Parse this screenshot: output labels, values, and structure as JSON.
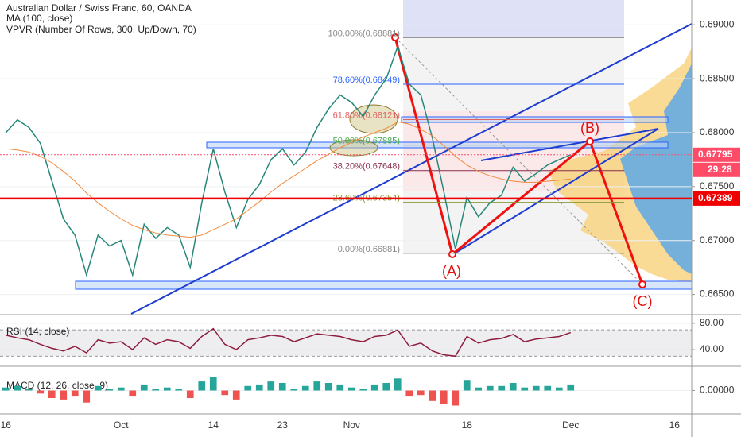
{
  "chart_data": [
    {
      "type": "line",
      "title": "Australian Dollar / Swiss Franc, 60, OANDA",
      "subtitle": "VPVR (Number Of Rows, 300, Up/Down, 70)",
      "categories": [
        "16",
        null,
        null,
        null,
        null,
        null,
        null,
        null,
        null,
        null,
        "Oct",
        null,
        null,
        null,
        null,
        null,
        null,
        null,
        "14",
        null,
        null,
        null,
        null,
        null,
        "23",
        null,
        null,
        null,
        null,
        null,
        "Nov",
        null,
        null,
        null,
        null,
        null,
        null,
        null,
        null,
        null,
        "18",
        null,
        null,
        null,
        null,
        null,
        null,
        null,
        null,
        "Dec",
        null,
        null,
        null,
        null,
        null,
        null,
        null,
        null,
        "16",
        null
      ],
      "color": "#26877a",
      "values": [
        0.68,
        0.6812,
        0.6805,
        0.679,
        0.6755,
        0.672,
        0.6705,
        0.6668,
        0.6705,
        0.6695,
        0.67,
        0.6668,
        0.6715,
        0.6702,
        0.6712,
        0.6705,
        0.6675,
        0.6735,
        0.6785,
        0.6745,
        0.6712,
        0.6738,
        0.6752,
        0.6775,
        0.6785,
        0.677,
        0.6782,
        0.6805,
        0.6822,
        0.6835,
        0.6828,
        0.6815,
        0.6835,
        0.685,
        0.688,
        0.6845,
        0.6835,
        0.6795,
        0.6745,
        0.6692,
        0.674,
        0.6722,
        0.6735,
        0.6742,
        0.6768,
        0.6755,
        0.6762,
        0.677,
        0.6775,
        0.67795,
        null,
        null,
        null,
        null,
        null,
        null,
        null,
        null,
        null,
        null
      ],
      "series": [
        {
          "name": "MA (100, close)",
          "color": "#f08a3c",
          "values": [
            0.6785,
            0.6784,
            0.6782,
            0.6778,
            0.6772,
            0.6764,
            0.6755,
            0.6744,
            0.6735,
            0.6727,
            0.672,
            0.6714,
            0.671,
            0.6707,
            0.6705,
            0.6704,
            0.6703,
            0.6705,
            0.671,
            0.6715,
            0.672,
            0.6728,
            0.6736,
            0.6745,
            0.6753,
            0.676,
            0.6767,
            0.6774,
            0.678,
            0.6786,
            0.6791,
            0.6796,
            0.68,
            0.6804,
            0.681,
            0.6808,
            0.6803,
            0.6797,
            0.6788,
            0.6778,
            0.677,
            0.6764,
            0.676,
            0.6757,
            0.6755,
            0.6754,
            0.6754,
            0.6755,
            0.6756,
            0.6757,
            null,
            null,
            null,
            null,
            null,
            null,
            null,
            null,
            null,
            null
          ]
        }
      ],
      "ylim": [
        0.6632,
        0.6923
      ],
      "yticks": [
        {
          "value": 0.665,
          "label": "0.66500"
        },
        {
          "value": 0.67,
          "label": "0.67000"
        },
        {
          "value": 0.675,
          "label": "0.67500"
        },
        {
          "value": 0.68,
          "label": "0.68000"
        },
        {
          "value": 0.685,
          "label": "0.68500"
        },
        {
          "value": 0.69,
          "label": "0.69000"
        }
      ],
      "fib_levels": [
        {
          "value": 0.68881,
          "label": "100.00%(0.68881)",
          "color": "#888888"
        },
        {
          "value": 0.68449,
          "label": "78.60%(0.68449)",
          "color": "#2962ff"
        },
        {
          "value": 0.68121,
          "label": "61.80%(0.68121)",
          "color": "#e06060"
        },
        {
          "value": 0.67885,
          "label": "50.00%(0.67885)",
          "color": "#4caf50"
        },
        {
          "value": 0.67648,
          "label": "38.20%(0.67648)",
          "color": "#8a2c4c"
        },
        {
          "value": 0.67354,
          "label": "23.60%(0.67354)",
          "color": "#8a9a3a"
        },
        {
          "value": 0.66881,
          "label": "0.00%(0.66881)",
          "color": "#888888"
        }
      ],
      "price_labels": [
        {
          "value": 0.67795,
          "label": "0.67795",
          "color": "#ff4a68"
        },
        {
          "value": 0.67389,
          "label": "0.67389",
          "color": "#f00000"
        }
      ],
      "countdown": "29:28",
      "wave_labels": [
        "(A)",
        "(B)",
        "(C)"
      ]
    },
    {
      "type": "line",
      "title": "RSI (14, close)",
      "color": "#8e1c3c",
      "values": [
        62,
        58,
        55,
        48,
        42,
        38,
        45,
        35,
        55,
        50,
        52,
        40,
        58,
        48,
        55,
        52,
        42,
        60,
        72,
        48,
        40,
        55,
        58,
        62,
        60,
        52,
        58,
        64,
        62,
        60,
        55,
        52,
        60,
        62,
        70,
        45,
        50,
        38,
        32,
        30,
        60,
        50,
        55,
        57,
        63,
        52,
        56,
        58,
        60,
        66,
        null,
        null,
        null,
        null,
        null,
        null,
        null,
        null,
        null,
        null
      ],
      "ylim": [
        15.8,
        90.9
      ],
      "yticks": [
        {
          "value": 40,
          "label": "40.00"
        },
        {
          "value": 80,
          "label": "80.00"
        }
      ],
      "hlines": [
        70,
        30
      ]
    },
    {
      "type": "bar",
      "title": "MACD (12, 26, close, 9)",
      "color": "#26a69a",
      "negative_color": "#ef5350",
      "values": [
        0.0002,
        0.0003,
        0.0001,
        -0.0002,
        -0.0005,
        -0.0006,
        -0.0004,
        -0.0008,
        0.0003,
        0.0001,
        0.0002,
        -0.0004,
        0.0004,
        0.0001,
        0.0002,
        0.0001,
        -0.0005,
        0.0006,
        0.0009,
        -0.0003,
        -0.0006,
        0.0003,
        0.0004,
        0.0006,
        0.0005,
        0.0001,
        0.0003,
        0.0006,
        0.0005,
        0.0004,
        0.0002,
        0.0001,
        0.0004,
        0.0005,
        0.0008,
        -0.0004,
        -0.0003,
        -0.0007,
        -0.0009,
        -0.001,
        0.0007,
        0.0002,
        0.0003,
        0.0003,
        0.0005,
        0.0002,
        0.0003,
        0.0003,
        0.0002,
        0.0004,
        null,
        null,
        null,
        null,
        null,
        null,
        null,
        null,
        null,
        null
      ],
      "ylim": [
        -0.0015,
        0.0015
      ],
      "yticks": [
        {
          "value": 0,
          "label": "0.00000"
        }
      ]
    }
  ]
}
